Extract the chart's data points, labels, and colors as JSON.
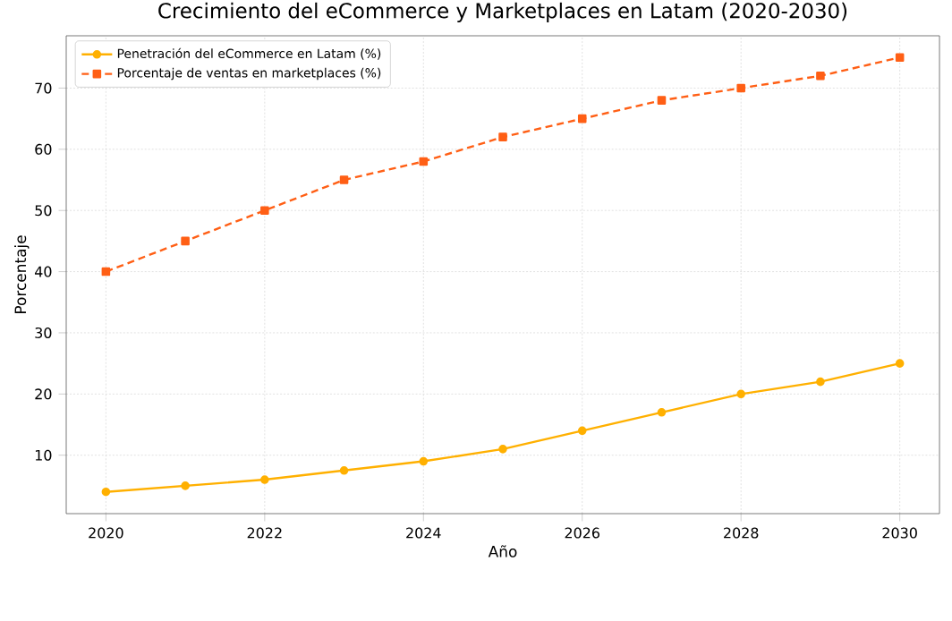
{
  "chart_data": {
    "type": "line",
    "title": "Crecimiento del eCommerce y Marketplaces en Latam (2020-2030)",
    "xlabel": "Año",
    "ylabel": "Porcentaje",
    "x": [
      2020,
      2021,
      2022,
      2023,
      2024,
      2025,
      2026,
      2027,
      2028,
      2029,
      2030
    ],
    "series": [
      {
        "name": "Penetración del eCommerce en Latam (%)",
        "color": "#ffb000",
        "marker": "circle",
        "line_style": "solid",
        "values": [
          4,
          5,
          6,
          7.5,
          9,
          11,
          14,
          17,
          20,
          22,
          25
        ]
      },
      {
        "name": "Porcentaje de ventas en marketplaces (%)",
        "color": "#ff5f15",
        "marker": "square",
        "line_style": "dashed",
        "values": [
          40,
          45,
          50,
          55,
          58,
          62,
          65,
          68,
          70,
          72,
          75
        ]
      }
    ],
    "xlim": [
      2019.5,
      2030.5
    ],
    "ylim": [
      0.45,
      78.55
    ],
    "xticks": [
      2020,
      2022,
      2024,
      2026,
      2028,
      2030
    ],
    "yticks": [
      10,
      20,
      30,
      40,
      50,
      60,
      70
    ],
    "grid": true,
    "legend": "top left"
  }
}
